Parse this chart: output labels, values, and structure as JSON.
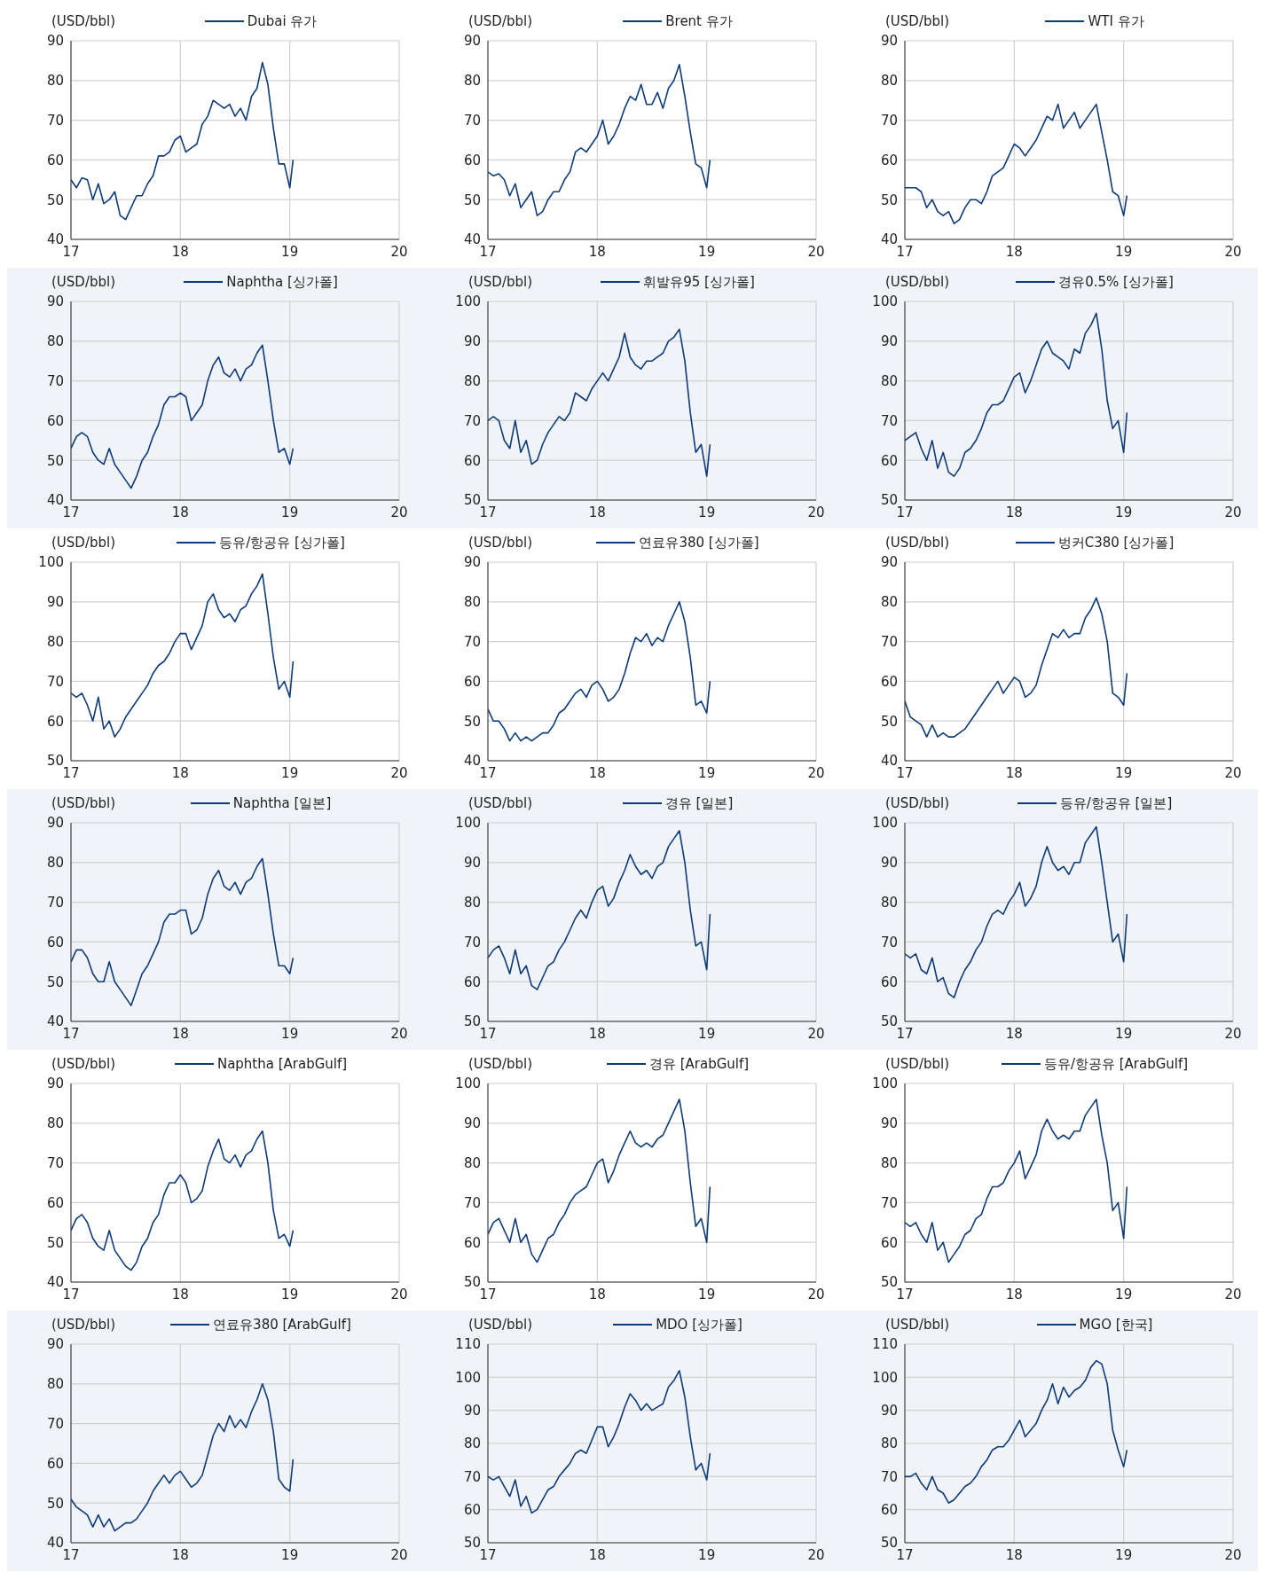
{
  "chart_data": [
    {
      "type": "line",
      "ylabel": "(USD/bbl)",
      "x": [
        17.0,
        17.05,
        17.1,
        17.15,
        17.2,
        17.25,
        17.3,
        17.35,
        17.4,
        17.45,
        17.5,
        17.55,
        17.6,
        17.65,
        17.7,
        17.75,
        17.8,
        17.85,
        17.9,
        17.95,
        18.0,
        18.05,
        18.1,
        18.15,
        18.2,
        18.25,
        18.3,
        18.35,
        18.4,
        18.45,
        18.5,
        18.55,
        18.6,
        18.65,
        18.7,
        18.75,
        18.8,
        18.85,
        18.9,
        18.95,
        19.0,
        19.03
      ],
      "xlim": [
        17,
        20
      ],
      "xticks": [
        17,
        18,
        19,
        20
      ],
      "ylim": [
        40,
        90
      ],
      "yticks": [
        40,
        50,
        60,
        70,
        80,
        90
      ],
      "grid": true,
      "legend": "top",
      "series": [
        {
          "name": "Dubai 유가",
          "color": "#0d3b7a",
          "values": [
            55,
            53,
            55.5,
            55,
            50,
            54,
            49,
            50,
            52,
            46,
            45,
            48,
            51,
            51,
            54,
            56,
            61,
            61,
            62,
            65,
            66,
            62,
            63,
            64,
            69,
            71,
            75,
            74,
            73,
            74,
            71,
            73,
            70,
            76,
            78,
            84.5,
            79,
            68,
            59,
            59,
            53,
            60
          ]
        }
      ]
    },
    {
      "type": "line",
      "ylabel": "(USD/bbl)",
      "x": [
        17.0,
        17.05,
        17.1,
        17.15,
        17.2,
        17.25,
        17.3,
        17.35,
        17.4,
        17.45,
        17.5,
        17.55,
        17.6,
        17.65,
        17.7,
        17.75,
        17.8,
        17.85,
        17.9,
        17.95,
        18.0,
        18.05,
        18.1,
        18.15,
        18.2,
        18.25,
        18.3,
        18.35,
        18.4,
        18.45,
        18.5,
        18.55,
        18.6,
        18.65,
        18.7,
        18.75,
        18.8,
        18.85,
        18.9,
        18.95,
        19.0,
        19.03
      ],
      "xlim": [
        17,
        20
      ],
      "xticks": [
        17,
        18,
        19,
        20
      ],
      "ylim": [
        40,
        90
      ],
      "yticks": [
        40,
        50,
        60,
        70,
        80,
        90
      ],
      "grid": true,
      "legend": "top",
      "series": [
        {
          "name": "Brent 유가",
          "color": "#0d3b7a",
          "values": [
            57,
            56,
            56.5,
            55,
            51,
            54,
            48,
            50,
            52,
            46,
            47,
            50,
            52,
            52,
            55,
            57,
            62,
            63,
            62,
            64,
            66,
            70,
            64,
            66,
            69,
            73,
            76,
            75,
            79,
            74,
            74,
            77,
            73,
            78,
            80,
            84,
            76,
            67,
            59,
            58,
            53,
            60
          ]
        }
      ]
    },
    {
      "type": "line",
      "ylabel": "(USD/bbl)",
      "x": [
        17.0,
        17.05,
        17.1,
        17.15,
        17.2,
        17.25,
        17.3,
        17.35,
        17.4,
        17.45,
        17.5,
        17.55,
        17.6,
        17.65,
        17.7,
        17.75,
        17.8,
        17.85,
        17.9,
        17.95,
        18.0,
        18.05,
        18.1,
        18.15,
        18.2,
        18.25,
        18.3,
        18.35,
        18.4,
        18.45,
        18.5,
        18.55,
        18.6,
        18.65,
        18.7,
        18.75,
        18.8,
        18.85,
        18.9,
        18.95,
        19.0,
        19.03
      ],
      "xlim": [
        17,
        20
      ],
      "xticks": [
        17,
        18,
        19,
        20
      ],
      "ylim": [
        40,
        90
      ],
      "yticks": [
        40,
        50,
        60,
        70,
        80,
        90
      ],
      "grid": true,
      "legend": "top",
      "series": [
        {
          "name": "WTI 유가",
          "color": "#0d3b7a",
          "values": [
            53,
            53,
            53,
            52,
            48,
            50,
            47,
            46,
            47,
            44,
            45,
            48,
            50,
            50,
            49,
            52,
            56,
            57,
            58,
            61,
            64,
            63,
            61,
            63,
            65,
            68,
            71,
            70,
            74,
            68,
            70,
            72,
            68,
            70,
            72,
            74,
            67,
            60,
            52,
            51,
            46,
            51
          ]
        }
      ]
    },
    {
      "type": "line",
      "ylabel": "(USD/bbl)",
      "x": [
        17.0,
        17.05,
        17.1,
        17.15,
        17.2,
        17.25,
        17.3,
        17.35,
        17.4,
        17.45,
        17.5,
        17.55,
        17.6,
        17.65,
        17.7,
        17.75,
        17.8,
        17.85,
        17.9,
        17.95,
        18.0,
        18.05,
        18.1,
        18.15,
        18.2,
        18.25,
        18.3,
        18.35,
        18.4,
        18.45,
        18.5,
        18.55,
        18.6,
        18.65,
        18.7,
        18.75,
        18.8,
        18.85,
        18.9,
        18.95,
        19.0,
        19.03
      ],
      "xlim": [
        17,
        20
      ],
      "xticks": [
        17,
        18,
        19,
        20
      ],
      "ylim": [
        40,
        90
      ],
      "yticks": [
        40,
        50,
        60,
        70,
        80,
        90
      ],
      "grid": true,
      "legend": "top",
      "series": [
        {
          "name": "Naphtha [싱가폴]",
          "color": "#0d3b7a",
          "values": [
            53,
            56,
            57,
            56,
            52,
            50,
            49,
            53,
            49,
            47,
            45,
            43,
            46,
            50,
            52,
            56,
            59,
            64,
            66,
            66,
            67,
            66,
            60,
            62,
            64,
            70,
            74,
            76,
            72,
            71,
            73,
            70,
            73,
            74,
            77,
            79,
            70,
            60,
            52,
            53,
            49,
            53
          ]
        }
      ]
    },
    {
      "type": "line",
      "ylabel": "(USD/bbl)",
      "x": [
        17.0,
        17.05,
        17.1,
        17.15,
        17.2,
        17.25,
        17.3,
        17.35,
        17.4,
        17.45,
        17.5,
        17.55,
        17.6,
        17.65,
        17.7,
        17.75,
        17.8,
        17.85,
        17.9,
        17.95,
        18.0,
        18.05,
        18.1,
        18.15,
        18.2,
        18.25,
        18.3,
        18.35,
        18.4,
        18.45,
        18.5,
        18.55,
        18.6,
        18.65,
        18.7,
        18.75,
        18.8,
        18.85,
        18.9,
        18.95,
        19.0,
        19.03
      ],
      "xlim": [
        17,
        20
      ],
      "xticks": [
        17,
        18,
        19,
        20
      ],
      "ylim": [
        50,
        100
      ],
      "yticks": [
        50,
        60,
        70,
        80,
        90,
        100
      ],
      "grid": true,
      "legend": "top",
      "series": [
        {
          "name": "휘발유95 [싱가폴]",
          "color": "#0d3b7a",
          "values": [
            70,
            71,
            70,
            65,
            63,
            70,
            62,
            65,
            59,
            60,
            64,
            67,
            69,
            71,
            70,
            72,
            77,
            76,
            75,
            78,
            80,
            82,
            80,
            83,
            86,
            92,
            86,
            84,
            83,
            85,
            85,
            86,
            87,
            90,
            91,
            93,
            85,
            72,
            62,
            64,
            56,
            64
          ]
        }
      ]
    },
    {
      "type": "line",
      "ylabel": "(USD/bbl)",
      "x": [
        17.0,
        17.05,
        17.1,
        17.15,
        17.2,
        17.25,
        17.3,
        17.35,
        17.4,
        17.45,
        17.5,
        17.55,
        17.6,
        17.65,
        17.7,
        17.75,
        17.8,
        17.85,
        17.9,
        17.95,
        18.0,
        18.05,
        18.1,
        18.15,
        18.2,
        18.25,
        18.3,
        18.35,
        18.4,
        18.45,
        18.5,
        18.55,
        18.6,
        18.65,
        18.7,
        18.75,
        18.8,
        18.85,
        18.9,
        18.95,
        19.0,
        19.03
      ],
      "xlim": [
        17,
        20
      ],
      "xticks": [
        17,
        18,
        19,
        20
      ],
      "ylim": [
        50,
        100
      ],
      "yticks": [
        50,
        60,
        70,
        80,
        90,
        100
      ],
      "grid": true,
      "legend": "top",
      "series": [
        {
          "name": "경유0.5% [싱가폴]",
          "color": "#0d3b7a",
          "values": [
            65,
            66,
            67,
            63,
            60,
            65,
            58,
            62,
            57,
            56,
            58,
            62,
            63,
            65,
            68,
            72,
            74,
            74,
            75,
            78,
            81,
            82,
            77,
            80,
            84,
            88,
            90,
            87,
            86,
            85,
            83,
            88,
            87,
            92,
            94,
            97,
            88,
            75,
            68,
            70,
            62,
            72
          ]
        }
      ]
    },
    {
      "type": "line",
      "ylabel": "(USD/bbl)",
      "x": [
        17.0,
        17.05,
        17.1,
        17.15,
        17.2,
        17.25,
        17.3,
        17.35,
        17.4,
        17.45,
        17.5,
        17.55,
        17.6,
        17.65,
        17.7,
        17.75,
        17.8,
        17.85,
        17.9,
        17.95,
        18.0,
        18.05,
        18.1,
        18.15,
        18.2,
        18.25,
        18.3,
        18.35,
        18.4,
        18.45,
        18.5,
        18.55,
        18.6,
        18.65,
        18.7,
        18.75,
        18.8,
        18.85,
        18.9,
        18.95,
        19.0,
        19.03
      ],
      "xlim": [
        17,
        20
      ],
      "xticks": [
        17,
        18,
        19,
        20
      ],
      "ylim": [
        50,
        100
      ],
      "yticks": [
        50,
        60,
        70,
        80,
        90,
        100
      ],
      "grid": true,
      "legend": "top",
      "series": [
        {
          "name": "등유/항공유 [싱가폴]",
          "color": "#0d3b7a",
          "values": [
            67,
            66,
            67,
            64,
            60,
            66,
            58,
            60,
            56,
            58,
            61,
            63,
            65,
            67,
            69,
            72,
            74,
            75,
            77,
            80,
            82,
            82,
            78,
            81,
            84,
            90,
            92,
            88,
            86,
            87,
            85,
            88,
            89,
            92,
            94,
            97,
            87,
            76,
            68,
            70,
            66,
            75
          ]
        }
      ]
    },
    {
      "type": "line",
      "ylabel": "(USD/bbl)",
      "x": [
        17.0,
        17.05,
        17.1,
        17.15,
        17.2,
        17.25,
        17.3,
        17.35,
        17.4,
        17.45,
        17.5,
        17.55,
        17.6,
        17.65,
        17.7,
        17.75,
        17.8,
        17.85,
        17.9,
        17.95,
        18.0,
        18.05,
        18.1,
        18.15,
        18.2,
        18.25,
        18.3,
        18.35,
        18.4,
        18.45,
        18.5,
        18.55,
        18.6,
        18.65,
        18.7,
        18.75,
        18.8,
        18.85,
        18.9,
        18.95,
        19.0,
        19.03
      ],
      "xlim": [
        17,
        20
      ],
      "xticks": [
        17,
        18,
        19,
        20
      ],
      "ylim": [
        40,
        90
      ],
      "yticks": [
        40,
        50,
        60,
        70,
        80,
        90
      ],
      "grid": true,
      "legend": "top",
      "series": [
        {
          "name": "연료유380 [싱가폴]",
          "color": "#0d3b7a",
          "values": [
            53,
            50,
            50,
            48,
            45,
            47,
            45,
            46,
            45,
            46,
            47,
            47,
            49,
            52,
            53,
            55,
            57,
            58,
            56,
            59,
            60,
            58,
            55,
            56,
            58,
            62,
            67,
            71,
            70,
            72,
            69,
            71,
            70,
            74,
            77,
            80,
            75,
            66,
            54,
            55,
            52,
            60
          ]
        }
      ]
    },
    {
      "type": "line",
      "ylabel": "(USD/bbl)",
      "x": [
        17.0,
        17.05,
        17.1,
        17.15,
        17.2,
        17.25,
        17.3,
        17.35,
        17.4,
        17.45,
        17.5,
        17.55,
        17.6,
        17.65,
        17.7,
        17.75,
        17.8,
        17.85,
        17.9,
        17.95,
        18.0,
        18.05,
        18.1,
        18.15,
        18.2,
        18.25,
        18.3,
        18.35,
        18.4,
        18.45,
        18.5,
        18.55,
        18.6,
        18.65,
        18.7,
        18.75,
        18.8,
        18.85,
        18.9,
        18.95,
        19.0,
        19.03
      ],
      "xlim": [
        17,
        20
      ],
      "xticks": [
        17,
        18,
        19,
        20
      ],
      "ylim": [
        40,
        90
      ],
      "yticks": [
        40,
        50,
        60,
        70,
        80,
        90
      ],
      "grid": true,
      "legend": "top",
      "series": [
        {
          "name": "벙커C380 [싱가폴]",
          "color": "#0d3b7a",
          "values": [
            55,
            51,
            50,
            49,
            46,
            49,
            46,
            47,
            46,
            46,
            47,
            48,
            50,
            52,
            54,
            56,
            58,
            60,
            57,
            59,
            61,
            60,
            56,
            57,
            59,
            64,
            68,
            72,
            71,
            73,
            71,
            72,
            72,
            76,
            78,
            81,
            77,
            70,
            57,
            56,
            54,
            62
          ]
        }
      ]
    },
    {
      "type": "line",
      "ylabel": "(USD/bbl)",
      "x": [
        17.0,
        17.05,
        17.1,
        17.15,
        17.2,
        17.25,
        17.3,
        17.35,
        17.4,
        17.45,
        17.5,
        17.55,
        17.6,
        17.65,
        17.7,
        17.75,
        17.8,
        17.85,
        17.9,
        17.95,
        18.0,
        18.05,
        18.1,
        18.15,
        18.2,
        18.25,
        18.3,
        18.35,
        18.4,
        18.45,
        18.5,
        18.55,
        18.6,
        18.65,
        18.7,
        18.75,
        18.8,
        18.85,
        18.9,
        18.95,
        19.0,
        19.03
      ],
      "xlim": [
        17,
        20
      ],
      "xticks": [
        17,
        18,
        19,
        20
      ],
      "ylim": [
        40,
        90
      ],
      "yticks": [
        40,
        50,
        60,
        70,
        80,
        90
      ],
      "grid": true,
      "legend": "top",
      "series": [
        {
          "name": "Naphtha [일본]",
          "color": "#0d3b7a",
          "values": [
            55,
            58,
            58,
            56,
            52,
            50,
            50,
            55,
            50,
            48,
            46,
            44,
            48,
            52,
            54,
            57,
            60,
            65,
            67,
            67,
            68,
            68,
            62,
            63,
            66,
            72,
            76,
            78,
            74,
            73,
            75,
            72,
            75,
            76,
            79,
            81,
            72,
            62,
            54,
            54,
            52,
            56
          ]
        }
      ]
    },
    {
      "type": "line",
      "ylabel": "(USD/bbl)",
      "x": [
        17.0,
        17.05,
        17.1,
        17.15,
        17.2,
        17.25,
        17.3,
        17.35,
        17.4,
        17.45,
        17.5,
        17.55,
        17.6,
        17.65,
        17.7,
        17.75,
        17.8,
        17.85,
        17.9,
        17.95,
        18.0,
        18.05,
        18.1,
        18.15,
        18.2,
        18.25,
        18.3,
        18.35,
        18.4,
        18.45,
        18.5,
        18.55,
        18.6,
        18.65,
        18.7,
        18.75,
        18.8,
        18.85,
        18.9,
        18.95,
        19.0,
        19.03
      ],
      "xlim": [
        17,
        20
      ],
      "xticks": [
        17,
        18,
        19,
        20
      ],
      "ylim": [
        50,
        100
      ],
      "yticks": [
        50,
        60,
        70,
        80,
        90,
        100
      ],
      "grid": true,
      "legend": "top",
      "series": [
        {
          "name": "경유 [일본]",
          "color": "#0d3b7a",
          "values": [
            66,
            68,
            69,
            66,
            62,
            68,
            62,
            64,
            59,
            58,
            61,
            64,
            65,
            68,
            70,
            73,
            76,
            78,
            76,
            80,
            83,
            84,
            79,
            81,
            85,
            88,
            92,
            89,
            87,
            88,
            86,
            89,
            90,
            94,
            96,
            98,
            90,
            78,
            69,
            70,
            63,
            77
          ]
        }
      ]
    },
    {
      "type": "line",
      "ylabel": "(USD/bbl)",
      "x": [
        17.0,
        17.05,
        17.1,
        17.15,
        17.2,
        17.25,
        17.3,
        17.35,
        17.4,
        17.45,
        17.5,
        17.55,
        17.6,
        17.65,
        17.7,
        17.75,
        17.8,
        17.85,
        17.9,
        17.95,
        18.0,
        18.05,
        18.1,
        18.15,
        18.2,
        18.25,
        18.3,
        18.35,
        18.4,
        18.45,
        18.5,
        18.55,
        18.6,
        18.65,
        18.7,
        18.75,
        18.8,
        18.85,
        18.9,
        18.95,
        19.0,
        19.03
      ],
      "xlim": [
        17,
        20
      ],
      "xticks": [
        17,
        18,
        19,
        20
      ],
      "ylim": [
        50,
        100
      ],
      "yticks": [
        50,
        60,
        70,
        80,
        90,
        100
      ],
      "grid": true,
      "legend": "top",
      "series": [
        {
          "name": "등유/항공유 [일본]",
          "color": "#0d3b7a",
          "values": [
            67,
            66,
            67,
            63,
            62,
            66,
            60,
            61,
            57,
            56,
            60,
            63,
            65,
            68,
            70,
            74,
            77,
            78,
            77,
            80,
            82,
            85,
            79,
            81,
            84,
            90,
            94,
            90,
            88,
            89,
            87,
            90,
            90,
            95,
            97,
            99,
            90,
            80,
            70,
            72,
            65,
            77
          ]
        }
      ]
    },
    {
      "type": "line",
      "ylabel": "(USD/bbl)",
      "x": [
        17.0,
        17.05,
        17.1,
        17.15,
        17.2,
        17.25,
        17.3,
        17.35,
        17.4,
        17.45,
        17.5,
        17.55,
        17.6,
        17.65,
        17.7,
        17.75,
        17.8,
        17.85,
        17.9,
        17.95,
        18.0,
        18.05,
        18.1,
        18.15,
        18.2,
        18.25,
        18.3,
        18.35,
        18.4,
        18.45,
        18.5,
        18.55,
        18.6,
        18.65,
        18.7,
        18.75,
        18.8,
        18.85,
        18.9,
        18.95,
        19.0,
        19.03
      ],
      "xlim": [
        17,
        20
      ],
      "xticks": [
        17,
        18,
        19,
        20
      ],
      "ylim": [
        40,
        90
      ],
      "yticks": [
        40,
        50,
        60,
        70,
        80,
        90
      ],
      "grid": true,
      "legend": "top",
      "series": [
        {
          "name": "Naphtha [ArabGulf]",
          "color": "#0d3b7a",
          "values": [
            53,
            56,
            57,
            55,
            51,
            49,
            48,
            53,
            48,
            46,
            44,
            43,
            45,
            49,
            51,
            55,
            57,
            62,
            65,
            65,
            67,
            65,
            60,
            61,
            63,
            69,
            73,
            76,
            71,
            70,
            72,
            69,
            72,
            73,
            76,
            78,
            70,
            58,
            51,
            52,
            49,
            53
          ]
        }
      ]
    },
    {
      "type": "line",
      "ylabel": "(USD/bbl)",
      "x": [
        17.0,
        17.05,
        17.1,
        17.15,
        17.2,
        17.25,
        17.3,
        17.35,
        17.4,
        17.45,
        17.5,
        17.55,
        17.6,
        17.65,
        17.7,
        17.75,
        17.8,
        17.85,
        17.9,
        17.95,
        18.0,
        18.05,
        18.1,
        18.15,
        18.2,
        18.25,
        18.3,
        18.35,
        18.4,
        18.45,
        18.5,
        18.55,
        18.6,
        18.65,
        18.7,
        18.75,
        18.8,
        18.85,
        18.9,
        18.95,
        19.0,
        19.03
      ],
      "xlim": [
        17,
        20
      ],
      "xticks": [
        17,
        18,
        19,
        20
      ],
      "ylim": [
        50,
        100
      ],
      "yticks": [
        50,
        60,
        70,
        80,
        90,
        100
      ],
      "grid": true,
      "legend": "top",
      "series": [
        {
          "name": "경유 [ArabGulf]",
          "color": "#0d3b7a",
          "values": [
            62,
            65,
            66,
            63,
            60,
            66,
            60,
            62,
            57,
            55,
            58,
            61,
            62,
            65,
            67,
            70,
            72,
            73,
            74,
            77,
            80,
            81,
            75,
            78,
            82,
            85,
            88,
            85,
            84,
            85,
            84,
            86,
            87,
            90,
            93,
            96,
            88,
            75,
            64,
            66,
            60,
            74
          ]
        }
      ]
    },
    {
      "type": "line",
      "ylabel": "(USD/bbl)",
      "x": [
        17.0,
        17.05,
        17.1,
        17.15,
        17.2,
        17.25,
        17.3,
        17.35,
        17.4,
        17.45,
        17.5,
        17.55,
        17.6,
        17.65,
        17.7,
        17.75,
        17.8,
        17.85,
        17.9,
        17.95,
        18.0,
        18.05,
        18.1,
        18.15,
        18.2,
        18.25,
        18.3,
        18.35,
        18.4,
        18.45,
        18.5,
        18.55,
        18.6,
        18.65,
        18.7,
        18.75,
        18.8,
        18.85,
        18.9,
        18.95,
        19.0,
        19.03
      ],
      "xlim": [
        17,
        20
      ],
      "xticks": [
        17,
        18,
        19,
        20
      ],
      "ylim": [
        50,
        100
      ],
      "yticks": [
        50,
        60,
        70,
        80,
        90,
        100
      ],
      "grid": true,
      "legend": "top",
      "series": [
        {
          "name": "등유/항공유 [ArabGulf]",
          "color": "#0d3b7a",
          "values": [
            65,
            64,
            65,
            62,
            60,
            65,
            58,
            60,
            55,
            57,
            59,
            62,
            63,
            66,
            67,
            71,
            74,
            74,
            75,
            78,
            80,
            83,
            76,
            79,
            82,
            88,
            91,
            88,
            86,
            87,
            86,
            88,
            88,
            92,
            94,
            96,
            87,
            80,
            68,
            70,
            61,
            74
          ]
        }
      ]
    },
    {
      "type": "line",
      "ylabel": "(USD/bbl)",
      "x": [
        17.0,
        17.05,
        17.1,
        17.15,
        17.2,
        17.25,
        17.3,
        17.35,
        17.4,
        17.45,
        17.5,
        17.55,
        17.6,
        17.65,
        17.7,
        17.75,
        17.8,
        17.85,
        17.9,
        17.95,
        18.0,
        18.05,
        18.1,
        18.15,
        18.2,
        18.25,
        18.3,
        18.35,
        18.4,
        18.45,
        18.5,
        18.55,
        18.6,
        18.65,
        18.7,
        18.75,
        18.8,
        18.85,
        18.9,
        18.95,
        19.0,
        19.03
      ],
      "xlim": [
        17,
        20
      ],
      "xticks": [
        17,
        18,
        19,
        20
      ],
      "ylim": [
        40,
        90
      ],
      "yticks": [
        40,
        50,
        60,
        70,
        80,
        90
      ],
      "grid": true,
      "legend": "top",
      "series": [
        {
          "name": "연료유380 [ArabGulf]",
          "color": "#0d3b7a",
          "values": [
            51,
            49,
            48,
            47,
            44,
            47,
            44,
            46,
            43,
            44,
            45,
            45,
            46,
            48,
            50,
            53,
            55,
            57,
            55,
            57,
            58,
            56,
            54,
            55,
            57,
            62,
            67,
            70,
            68,
            72,
            69,
            71,
            69,
            73,
            76,
            80,
            76,
            68,
            56,
            54,
            53,
            61
          ]
        }
      ]
    },
    {
      "type": "line",
      "ylabel": "(USD/bbl)",
      "x": [
        17.0,
        17.05,
        17.1,
        17.15,
        17.2,
        17.25,
        17.3,
        17.35,
        17.4,
        17.45,
        17.5,
        17.55,
        17.6,
        17.65,
        17.7,
        17.75,
        17.8,
        17.85,
        17.9,
        17.95,
        18.0,
        18.05,
        18.1,
        18.15,
        18.2,
        18.25,
        18.3,
        18.35,
        18.4,
        18.45,
        18.5,
        18.55,
        18.6,
        18.65,
        18.7,
        18.75,
        18.8,
        18.85,
        18.9,
        18.95,
        19.0,
        19.03
      ],
      "xlim": [
        17,
        20
      ],
      "xticks": [
        17,
        18,
        19,
        20
      ],
      "ylim": [
        50,
        110
      ],
      "yticks": [
        50,
        60,
        70,
        80,
        90,
        100,
        110
      ],
      "grid": true,
      "legend": "top",
      "series": [
        {
          "name": "MDO [싱가폴]",
          "color": "#0d3b7a",
          "values": [
            70,
            69,
            70,
            67,
            64,
            69,
            61,
            64,
            59,
            60,
            63,
            66,
            67,
            70,
            72,
            74,
            77,
            78,
            77,
            81,
            85,
            85,
            79,
            82,
            86,
            91,
            95,
            93,
            90,
            92,
            90,
            91,
            92,
            97,
            99,
            102,
            94,
            82,
            72,
            74,
            69,
            77
          ]
        }
      ]
    },
    {
      "type": "line",
      "ylabel": "(USD/bbl)",
      "x": [
        17.0,
        17.05,
        17.1,
        17.15,
        17.2,
        17.25,
        17.3,
        17.35,
        17.4,
        17.45,
        17.5,
        17.55,
        17.6,
        17.65,
        17.7,
        17.75,
        17.8,
        17.85,
        17.9,
        17.95,
        18.0,
        18.05,
        18.1,
        18.15,
        18.2,
        18.25,
        18.3,
        18.35,
        18.4,
        18.45,
        18.5,
        18.55,
        18.6,
        18.65,
        18.7,
        18.75,
        18.8,
        18.85,
        18.9,
        18.95,
        19.0,
        19.03
      ],
      "xlim": [
        17,
        20
      ],
      "xticks": [
        17,
        18,
        19,
        20
      ],
      "ylim": [
        50,
        110
      ],
      "yticks": [
        50,
        60,
        70,
        80,
        90,
        100,
        110
      ],
      "grid": true,
      "legend": "top",
      "series": [
        {
          "name": "MGO [한국]",
          "color": "#0d3b7a",
          "values": [
            70,
            70,
            71,
            68,
            66,
            70,
            66,
            65,
            62,
            63,
            65,
            67,
            68,
            70,
            73,
            75,
            78,
            79,
            79,
            81,
            84,
            87,
            82,
            84,
            86,
            90,
            93,
            98,
            92,
            97,
            94,
            96,
            97,
            99,
            103,
            105,
            104,
            98,
            84,
            78,
            73,
            78
          ]
        }
      ]
    }
  ]
}
